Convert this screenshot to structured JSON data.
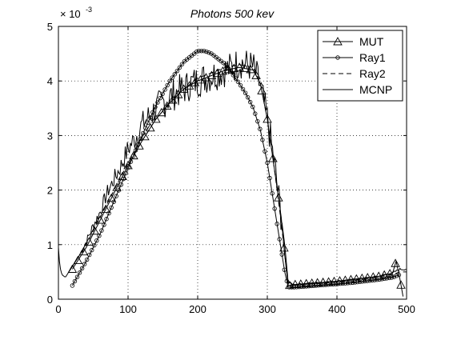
{
  "chart_data": {
    "type": "line",
    "title": "Photons 500 kev",
    "xlabel": "",
    "ylabel": "",
    "y_exponent_label": "× 10",
    "y_exponent_power": "-3",
    "xlim": [
      0,
      500
    ],
    "ylim": [
      0,
      5
    ],
    "xticks": [
      0,
      100,
      200,
      300,
      400,
      500
    ],
    "yticks": [
      0,
      1,
      2,
      3,
      4,
      5
    ],
    "grid": true,
    "legend_position": "top-right",
    "series": [
      {
        "name": "MUT",
        "marker": "triangle",
        "line": "solid",
        "x": [
          20,
          40,
          60,
          80,
          100,
          120,
          140,
          160,
          180,
          200,
          220,
          240,
          260,
          280,
          290,
          300,
          310,
          320,
          325,
          330,
          340,
          360,
          380,
          400,
          420,
          440,
          460,
          480,
          485,
          490,
          495
        ],
        "y": [
          0.55,
          0.95,
          1.45,
          1.95,
          2.45,
          2.9,
          3.3,
          3.6,
          3.85,
          4.0,
          4.1,
          4.2,
          4.25,
          4.2,
          3.95,
          3.3,
          2.4,
          1.5,
          0.8,
          0.25,
          0.27,
          0.29,
          0.31,
          0.33,
          0.36,
          0.39,
          0.42,
          0.48,
          0.7,
          0.4,
          0.05
        ]
      },
      {
        "name": "Ray1",
        "marker": "circle",
        "line": "solid",
        "x": [
          20,
          40,
          60,
          80,
          100,
          120,
          140,
          160,
          180,
          200,
          210,
          220,
          240,
          260,
          270,
          280,
          290,
          300,
          310,
          320,
          325,
          330,
          340,
          360,
          380,
          400,
          420,
          440,
          460,
          480,
          490
        ],
        "y": [
          0.25,
          0.7,
          1.2,
          1.8,
          2.4,
          3.0,
          3.55,
          4.0,
          4.35,
          4.55,
          4.55,
          4.5,
          4.3,
          3.95,
          3.75,
          3.5,
          3.1,
          2.5,
          1.7,
          0.9,
          0.5,
          0.22,
          0.22,
          0.24,
          0.26,
          0.28,
          0.3,
          0.33,
          0.36,
          0.4,
          0.45
        ]
      },
      {
        "name": "Ray2",
        "marker": "none",
        "line": "dashed",
        "x": [
          20,
          40,
          60,
          80,
          100,
          120,
          140,
          160,
          180,
          200,
          220,
          240,
          260,
          280,
          290,
          300,
          310,
          320,
          330,
          340,
          360,
          380,
          400,
          420,
          440,
          460,
          480,
          490,
          500
        ],
        "y": [
          0.6,
          1.0,
          1.5,
          2.0,
          2.5,
          2.9,
          3.3,
          3.6,
          3.85,
          4.05,
          4.15,
          4.25,
          4.3,
          4.25,
          3.95,
          3.3,
          2.4,
          1.4,
          0.25,
          0.26,
          0.28,
          0.3,
          0.32,
          0.35,
          0.38,
          0.41,
          0.45,
          0.5,
          0.5
        ]
      },
      {
        "name": "MCNP",
        "marker": "none",
        "line": "solid",
        "noisy": true,
        "x": [
          0,
          2,
          5,
          10,
          15,
          20,
          25,
          30,
          40,
          50,
          60,
          70,
          80,
          90,
          100,
          110,
          120,
          130,
          140,
          150,
          160,
          170,
          180,
          190,
          200,
          210,
          220,
          230,
          240,
          250,
          260,
          270,
          280,
          290,
          300,
          310,
          320,
          325,
          330,
          340,
          360,
          380,
          400,
          420,
          440,
          460,
          480,
          490,
          500
        ],
        "y": [
          0.95,
          0.6,
          0.45,
          0.4,
          0.5,
          0.6,
          0.7,
          0.8,
          1.05,
          1.35,
          1.6,
          1.95,
          2.2,
          2.45,
          2.75,
          2.95,
          3.2,
          3.35,
          3.5,
          3.6,
          3.7,
          3.8,
          3.85,
          3.95,
          4.0,
          4.05,
          4.1,
          4.15,
          4.2,
          4.25,
          4.35,
          4.3,
          4.25,
          3.9,
          3.3,
          2.5,
          1.5,
          1.0,
          0.3,
          0.27,
          0.29,
          0.31,
          0.33,
          0.35,
          0.38,
          0.42,
          0.48,
          0.55,
          0.55
        ]
      }
    ]
  }
}
